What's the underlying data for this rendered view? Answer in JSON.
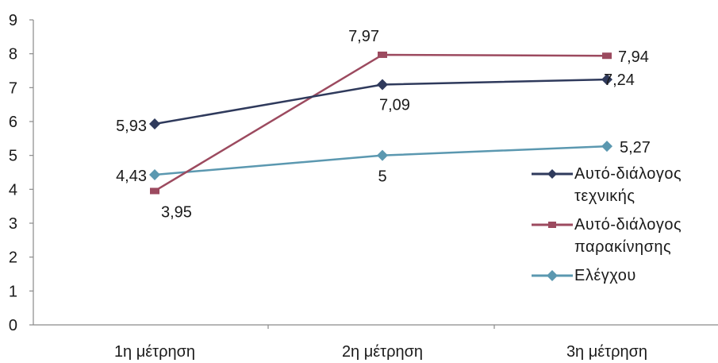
{
  "chart_data": {
    "type": "line",
    "categories": [
      "1η μέτρηση",
      "2η μέτρηση",
      "3η μέτρηση"
    ],
    "ylim": [
      0,
      9
    ],
    "yticks": [
      "0",
      "1",
      "2",
      "3",
      "4",
      "5",
      "6",
      "7",
      "8",
      "9"
    ],
    "grid": false,
    "legend_position": "right",
    "series": [
      {
        "name": "Αυτό-διάλογος τεχνικής",
        "values": [
          5.93,
          7.09,
          7.24
        ],
        "labels": [
          "5,93",
          "7,09",
          "7,24"
        ],
        "color": "#2f3a5c",
        "marker": "diamond"
      },
      {
        "name": "Αυτό-διάλογος παρακίνησης",
        "values": [
          3.95,
          7.97,
          7.94
        ],
        "labels": [
          "3,95",
          "7,97",
          "7,94"
        ],
        "color": "#9c4a5f",
        "marker": "dash"
      },
      {
        "name": "Ελέγχου",
        "values": [
          4.43,
          5,
          5.27
        ],
        "labels": [
          "4,43",
          "5",
          "5,27"
        ],
        "color": "#5b98b0",
        "marker": "diamond"
      }
    ]
  }
}
